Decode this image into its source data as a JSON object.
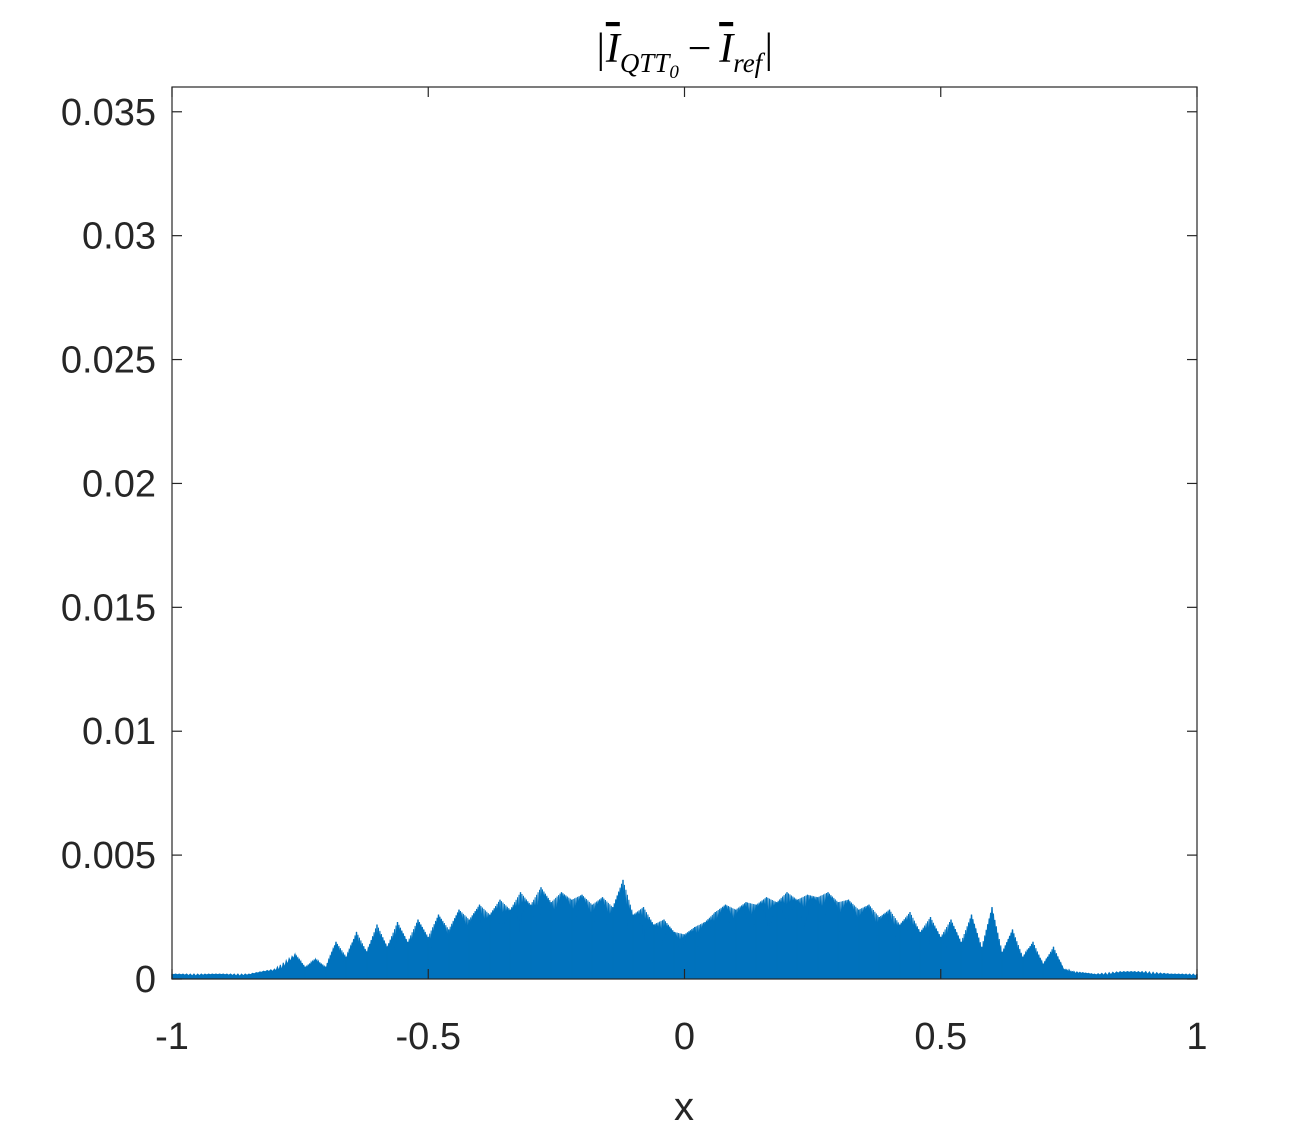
{
  "chart_data": {
    "type": "area",
    "title": {
      "open_bar": "|",
      "term1_symbol": "I",
      "term1_subscript": "QTT",
      "term1_subsubscript": "0",
      "minus": "−",
      "term2_symbol": "I",
      "term2_subscript": "ref",
      "close_bar": "|"
    },
    "xlabel": "x",
    "ylabel": "",
    "xlim": [
      -1,
      1
    ],
    "ylim": [
      0,
      0.036
    ],
    "x_ticks": [
      -1,
      -0.5,
      0,
      0.5,
      1
    ],
    "x_tick_labels": [
      "-1",
      "-0.5",
      "0",
      "0.5",
      "1"
    ],
    "y_ticks": [
      0,
      0.005,
      0.01,
      0.015,
      0.02,
      0.025,
      0.03,
      0.035
    ],
    "y_tick_labels": [
      "0",
      "0.005",
      "0.01",
      "0.015",
      "0.02",
      "0.025",
      "0.03",
      "0.035"
    ],
    "grid": false,
    "box": true,
    "series": [
      {
        "color": "#0072BD",
        "x": [
          -1.0,
          -0.95,
          -0.9,
          -0.85,
          -0.8,
          -0.76,
          -0.74,
          -0.72,
          -0.7,
          -0.68,
          -0.66,
          -0.64,
          -0.62,
          -0.6,
          -0.58,
          -0.56,
          -0.54,
          -0.52,
          -0.5,
          -0.48,
          -0.46,
          -0.44,
          -0.42,
          -0.4,
          -0.38,
          -0.36,
          -0.34,
          -0.32,
          -0.3,
          -0.28,
          -0.26,
          -0.24,
          -0.22,
          -0.2,
          -0.18,
          -0.16,
          -0.14,
          -0.12,
          -0.1,
          -0.08,
          -0.06,
          -0.04,
          -0.02,
          0.0,
          0.02,
          0.04,
          0.06,
          0.08,
          0.1,
          0.12,
          0.14,
          0.16,
          0.18,
          0.2,
          0.22,
          0.24,
          0.26,
          0.28,
          0.3,
          0.32,
          0.34,
          0.36,
          0.38,
          0.4,
          0.42,
          0.44,
          0.46,
          0.48,
          0.5,
          0.52,
          0.54,
          0.56,
          0.58,
          0.6,
          0.62,
          0.64,
          0.66,
          0.68,
          0.7,
          0.72,
          0.74,
          0.76,
          0.8,
          0.85,
          0.9,
          0.95,
          1.0
        ],
        "y": [
          0.0002,
          0.0002,
          0.0002,
          0.0002,
          0.0004,
          0.001,
          0.0005,
          0.0008,
          0.0005,
          0.0015,
          0.0009,
          0.0019,
          0.0011,
          0.0022,
          0.0013,
          0.0023,
          0.0015,
          0.0024,
          0.0017,
          0.0026,
          0.002,
          0.0028,
          0.0024,
          0.003,
          0.0026,
          0.0032,
          0.0028,
          0.0035,
          0.003,
          0.0037,
          0.0031,
          0.0035,
          0.0032,
          0.0034,
          0.003,
          0.0033,
          0.0029,
          0.004,
          0.0026,
          0.0029,
          0.0022,
          0.0024,
          0.0019,
          0.0018,
          0.0021,
          0.0023,
          0.0027,
          0.003,
          0.0028,
          0.0031,
          0.003,
          0.0033,
          0.0031,
          0.0035,
          0.0032,
          0.0034,
          0.0033,
          0.0035,
          0.0031,
          0.0032,
          0.0028,
          0.003,
          0.0025,
          0.0028,
          0.0022,
          0.0027,
          0.0019,
          0.0025,
          0.0017,
          0.0024,
          0.0015,
          0.0026,
          0.0013,
          0.0029,
          0.0011,
          0.002,
          0.0009,
          0.0015,
          0.0006,
          0.0013,
          0.0004,
          0.0003,
          0.0002,
          0.0003,
          0.0003,
          0.0002,
          0.0002
        ]
      }
    ]
  }
}
